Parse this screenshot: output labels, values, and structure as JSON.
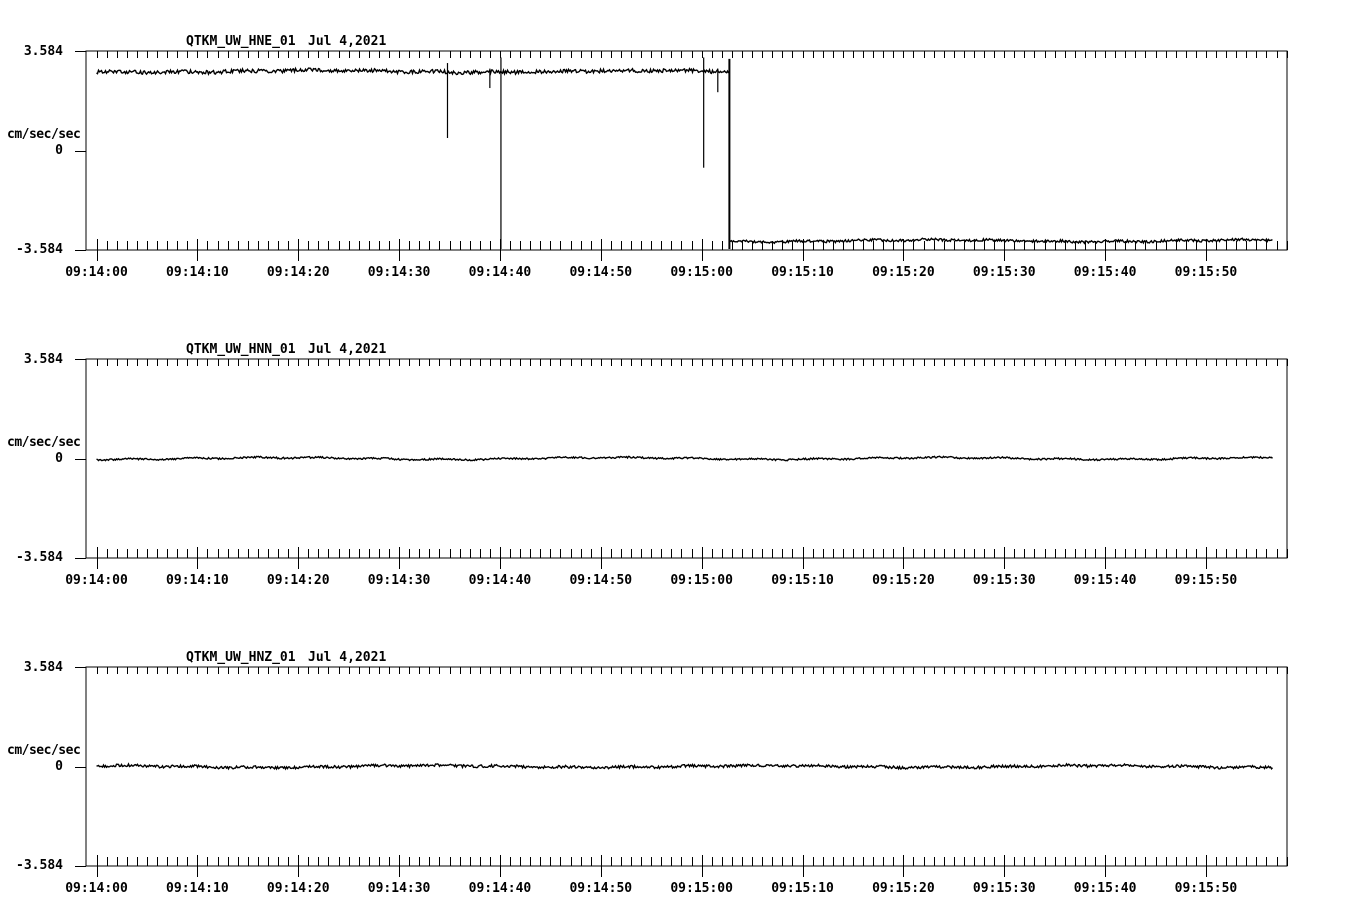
{
  "colors": {
    "background": "#ffffff",
    "foreground": "#000000"
  },
  "chart_data": [
    {
      "type": "line",
      "title": "QTKM_UW_HNE_01",
      "date_label": "Jul 4,2021",
      "ylabel": "cm/sec/sec",
      "yticks": [
        3.584,
        0,
        -3.584
      ],
      "ytick_labels": [
        "3.584",
        "0",
        "-3.584"
      ],
      "ylim": [
        -3.584,
        3.584
      ],
      "x_tick_labels": [
        "09:14:00",
        "09:14:10",
        "09:14:20",
        "09:14:30",
        "09:14:40",
        "09:14:50",
        "09:15:00",
        "09:15:10",
        "09:15:20",
        "09:15:30",
        "09:15:40",
        "09:15:50"
      ],
      "x_major_interval_seconds": 10,
      "x_minor_interval_seconds": 1,
      "duration_seconds": 116.6,
      "legend": "none",
      "grid": "off",
      "series": [
        {
          "name": "QTKM_UW_HNE_01",
          "segments": [
            {
              "t0": 0,
              "t1": 62.75,
              "value": 2.85,
              "noise": 0.068
            },
            {
              "t0": 62.75,
              "t1": 116.6,
              "value": -3.25,
              "noise": 0.045
            }
          ],
          "spikes": [
            {
              "t": 34.8,
              "lo": 0.45,
              "hi": 3.15
            },
            {
              "t": 39.0,
              "lo": 2.25,
              "hi": 2.95
            },
            {
              "t": 40.1,
              "lo": -3.55,
              "hi": 3.35
            },
            {
              "t": 60.2,
              "lo": -0.62,
              "hi": 3.35
            },
            {
              "t": 61.6,
              "lo": 2.1,
              "hi": 2.95
            }
          ],
          "step": {
            "t": 62.75,
            "from": 3.3,
            "to": -3.55
          }
        }
      ]
    },
    {
      "type": "line",
      "title": "QTKM_UW_HNN_01",
      "date_label": "Jul 4,2021",
      "ylabel": "cm/sec/sec",
      "yticks": [
        3.584,
        0,
        -3.584
      ],
      "ytick_labels": [
        "3.584",
        "0",
        "-3.584"
      ],
      "ylim": [
        -3.584,
        3.584
      ],
      "x_tick_labels": [
        "09:14:00",
        "09:14:10",
        "09:14:20",
        "09:14:30",
        "09:14:40",
        "09:14:50",
        "09:15:00",
        "09:15:10",
        "09:15:20",
        "09:15:30",
        "09:15:40",
        "09:15:50"
      ],
      "x_major_interval_seconds": 10,
      "x_minor_interval_seconds": 1,
      "duration_seconds": 116.6,
      "legend": "none",
      "grid": "off",
      "series": [
        {
          "name": "QTKM_UW_HNN_01",
          "segments": [
            {
              "t0": 0,
              "t1": 116.6,
              "value": 0,
              "noise": 0.03
            }
          ],
          "spikes": []
        }
      ]
    },
    {
      "type": "line",
      "title": "QTKM_UW_HNZ_01",
      "date_label": "Jul 4,2021",
      "ylabel": "cm/sec/sec",
      "yticks": [
        3.584,
        0,
        -3.584
      ],
      "ytick_labels": [
        "3.584",
        "0",
        "-3.584"
      ],
      "ylim": [
        -3.584,
        3.584
      ],
      "x_tick_labels": [
        "09:14:00",
        "09:14:10",
        "09:14:20",
        "09:14:30",
        "09:14:40",
        "09:14:50",
        "09:15:00",
        "09:15:10",
        "09:15:20",
        "09:15:30",
        "09:15:40",
        "09:15:50"
      ],
      "x_major_interval_seconds": 10,
      "x_minor_interval_seconds": 1,
      "duration_seconds": 116.6,
      "legend": "none",
      "grid": "off",
      "series": [
        {
          "name": "QTKM_UW_HNZ_01",
          "segments": [
            {
              "t0": 0,
              "t1": 116.6,
              "value": 0,
              "noise": 0.048
            }
          ],
          "spikes": []
        }
      ]
    }
  ]
}
